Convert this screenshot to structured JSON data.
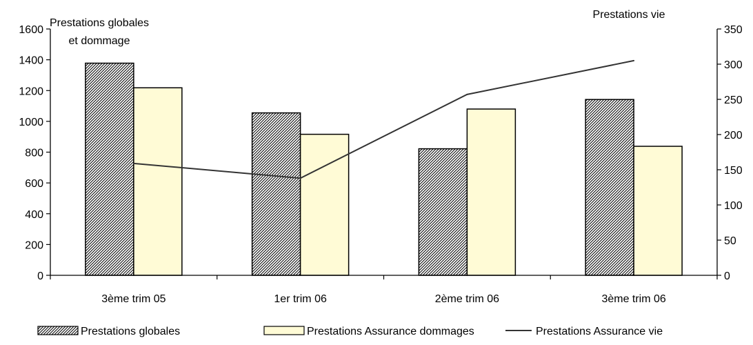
{
  "chart_data": {
    "type": "bar",
    "categories": [
      "3ème trim 05",
      "1er trim 06",
      "2ème trim 06",
      "3ème trim 06"
    ],
    "series": [
      {
        "name": "Prestations globales",
        "type": "bar",
        "axis": "left",
        "pattern": "hatch",
        "values": [
          1378,
          1055,
          822,
          1142
        ]
      },
      {
        "name": "Prestations Assurance dommages",
        "type": "bar",
        "axis": "left",
        "color": "#FFFBD6",
        "values": [
          1218,
          916,
          1080,
          838
        ]
      },
      {
        "name": "Prestations Assurance vie",
        "type": "line",
        "axis": "right",
        "color": "#333333",
        "values": [
          159,
          138,
          257,
          305
        ]
      }
    ],
    "left_axis": {
      "title_line1": "Prestations globales",
      "title_line2": "et dommage",
      "range": [
        0,
        1600
      ],
      "ticks": [
        "0",
        "200",
        "400",
        "600",
        "800",
        "1000",
        "1200",
        "1400",
        "1600"
      ]
    },
    "right_axis": {
      "title": "Prestations vie",
      "range": [
        0,
        350
      ],
      "ticks": [
        "0",
        "50",
        "100",
        "150",
        "200",
        "250",
        "300",
        "350"
      ]
    },
    "legend_position": "bottom",
    "grid": false
  }
}
